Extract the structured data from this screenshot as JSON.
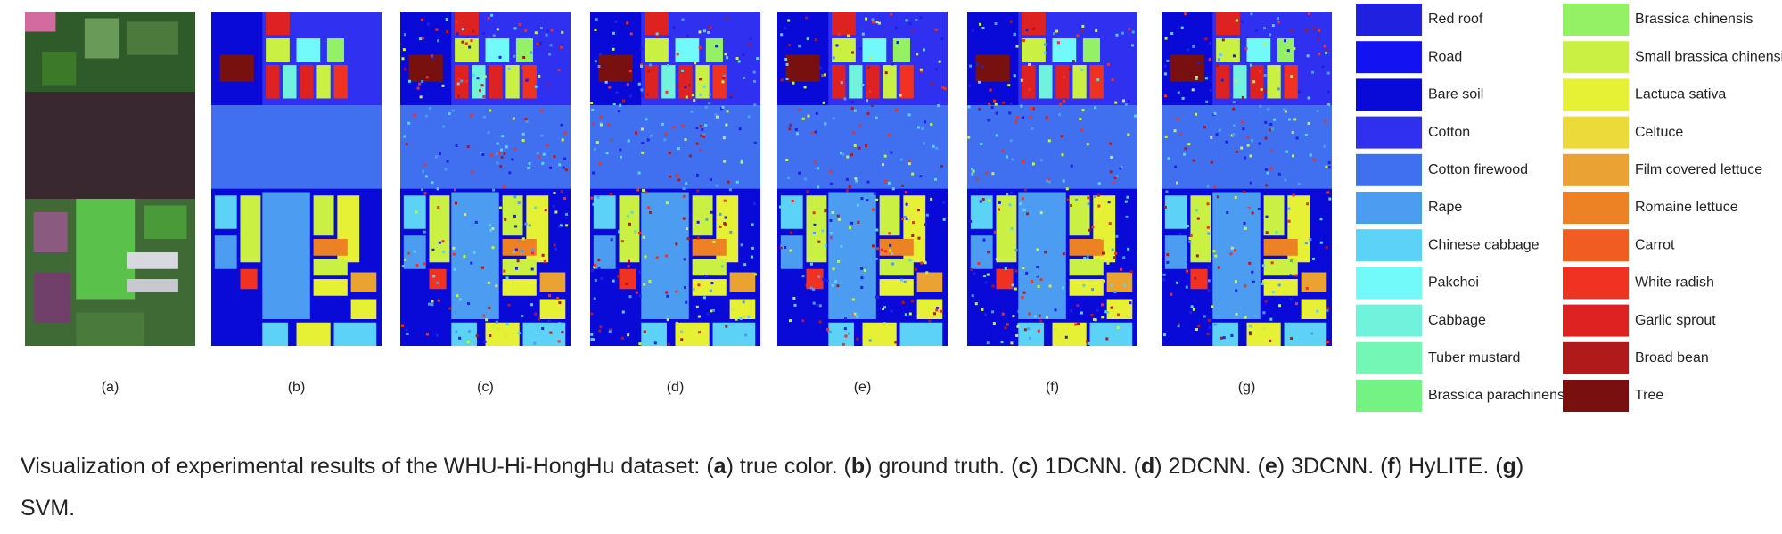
{
  "panels": {
    "labels": [
      "(a)",
      "(b)",
      "(c)",
      "(d)",
      "(e)",
      "(f)",
      "(g)"
    ]
  },
  "legend": {
    "items": [
      {
        "name": "Red roof",
        "color": "#2020e0"
      },
      {
        "name": "Road",
        "color": "#1212f2"
      },
      {
        "name": "Bare soil",
        "color": "#0a0ad8"
      },
      {
        "name": "Cotton",
        "color": "#3030f0"
      },
      {
        "name": "Cotton firewood",
        "color": "#4070f0"
      },
      {
        "name": "Rape",
        "color": "#4c9cf2"
      },
      {
        "name": "Chinese cabbage",
        "color": "#5cd2f6"
      },
      {
        "name": "Pakchoi",
        "color": "#72fafa"
      },
      {
        "name": "Cabbage",
        "color": "#70f2dc"
      },
      {
        "name": "Tuber mustard",
        "color": "#74f6b4"
      },
      {
        "name": "Brassica parachinensis",
        "color": "#74f284"
      },
      {
        "name": "Brassica chinensis",
        "color": "#94f064"
      },
      {
        "name": "Small brassica chinensis",
        "color": "#caf044"
      },
      {
        "name": "Lactuca sativa",
        "color": "#e6f034"
      },
      {
        "name": "Celtuce",
        "color": "#ecda3a"
      },
      {
        "name": "Film covered lettuce",
        "color": "#eaa232"
      },
      {
        "name": "Romaine lettuce",
        "color": "#ec8224"
      },
      {
        "name": "Carrot",
        "color": "#f05c22"
      },
      {
        "name": "White radish",
        "color": "#f03222"
      },
      {
        "name": "Garlic sprout",
        "color": "#de2222"
      },
      {
        "name": "Broad bean",
        "color": "#b01a1a"
      },
      {
        "name": "Tree",
        "color": "#781010"
      }
    ]
  },
  "caption": {
    "lines": [
      [
        {
          "text": "Visualization of experimental results of the WHU-Hi-HongHu dataset: (",
          "bold": false
        },
        {
          "text": "a",
          "bold": true
        },
        {
          "text": ") true color. (",
          "bold": false
        },
        {
          "text": "b",
          "bold": true
        },
        {
          "text": ") ground truth. (",
          "bold": false
        },
        {
          "text": "c",
          "bold": true
        },
        {
          "text": ") 1DCNN. (",
          "bold": false
        },
        {
          "text": "d",
          "bold": true
        },
        {
          "text": ") 2DCNN. (",
          "bold": false
        },
        {
          "text": "e",
          "bold": true
        },
        {
          "text": ") 3DCNN. (",
          "bold": false
        },
        {
          "text": "f",
          "bold": true
        },
        {
          "text": ") HyLITE. (",
          "bold": false
        },
        {
          "text": "g",
          "bold": true
        },
        {
          "text": ")",
          "bold": false
        }
      ],
      [
        {
          "text": "SVM.",
          "bold": false
        }
      ]
    ]
  }
}
